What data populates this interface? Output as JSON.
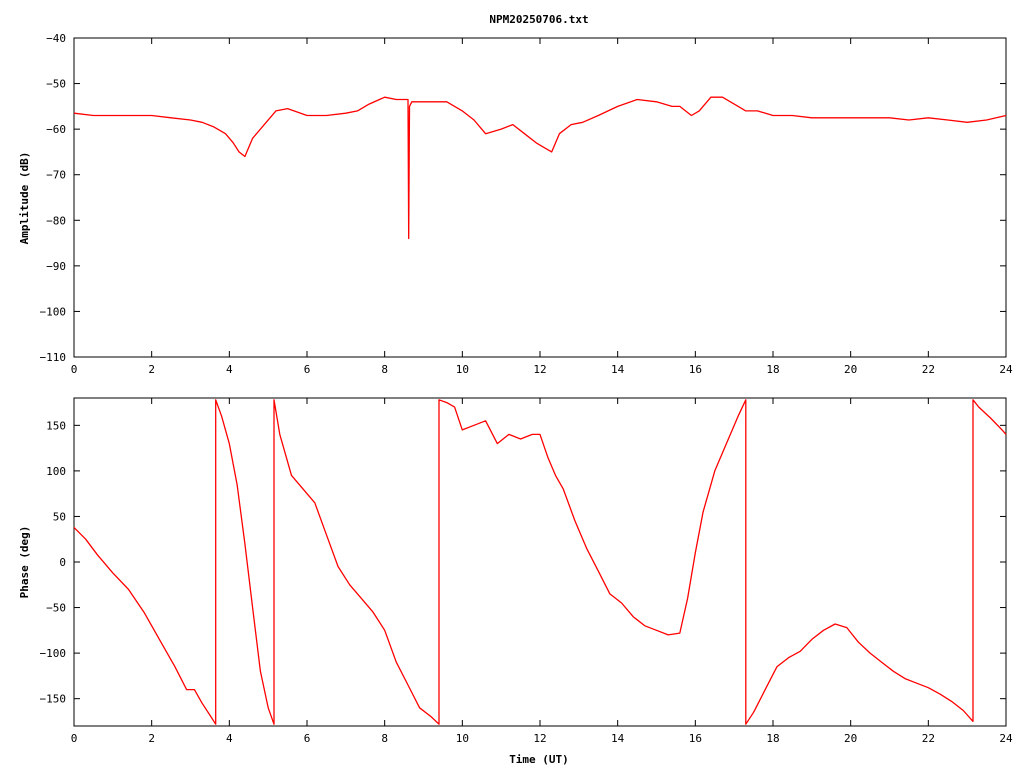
{
  "title": "NPM20250706.txt",
  "colors": {
    "trace": "#ff0000",
    "axis": "#000000",
    "grid": "#000000"
  },
  "chart_data": [
    {
      "type": "line",
      "panel": "amplitude",
      "xlabel": "",
      "ylabel": "Amplitude (dB)",
      "xlim": [
        0,
        24
      ],
      "ylim": [
        -110,
        -40
      ],
      "xticks": [
        0,
        2,
        4,
        6,
        8,
        10,
        12,
        14,
        16,
        18,
        20,
        22,
        24
      ],
      "yticks": [
        -40,
        -50,
        -60,
        -70,
        -80,
        -90,
        -100,
        -110
      ],
      "xtick_labels": [
        "0",
        "2",
        "4",
        "6",
        "8",
        "10",
        "12",
        "14",
        "16",
        "18",
        "20",
        "22",
        "24"
      ],
      "ytick_labels": [
        "−40",
        "−50",
        "−60",
        "−70",
        "−80",
        "−90",
        "−100",
        "−110"
      ],
      "series": [
        {
          "x": [
            0,
            0.5,
            1,
            1.5,
            2,
            2.5,
            3,
            3.3,
            3.6,
            3.9,
            4.1,
            4.25,
            4.4,
            4.6,
            4.9,
            5.2,
            5.5,
            6.0,
            6.5,
            7.0,
            7.3,
            7.6,
            8.0,
            8.3,
            8.6,
            8.62,
            8.64,
            8.7,
            9.0,
            9.3,
            9.6,
            10.0,
            10.3,
            10.6,
            11.0,
            11.3,
            11.6,
            11.9,
            12.1,
            12.3,
            12.5,
            12.8,
            13.1,
            13.5,
            14.0,
            14.5,
            15.0,
            15.4,
            15.6,
            15.9,
            16.1,
            16.4,
            16.7,
            17.0,
            17.3,
            17.6,
            18.0,
            18.5,
            19.0,
            19.5,
            20.0,
            20.5,
            21.0,
            21.5,
            22.0,
            22.5,
            23.0,
            23.5,
            24.0
          ],
          "y": [
            -56.5,
            -57,
            -57,
            -57,
            -57,
            -57.5,
            -58,
            -58.5,
            -59.5,
            -61,
            -63,
            -65,
            -66,
            -62,
            -59,
            -56,
            -55.5,
            -57,
            -57,
            -56.5,
            -56,
            -54.5,
            -53,
            -53.5,
            -53.5,
            -84,
            -55,
            -54,
            -54,
            -54,
            -54,
            -56,
            -58,
            -61,
            -60,
            -59,
            -61,
            -63,
            -64,
            -65,
            -61,
            -59,
            -58.5,
            -57,
            -55,
            -53.5,
            -54,
            -55,
            -55,
            -57,
            -56,
            -53,
            -53,
            -54.5,
            -56,
            -56,
            -57,
            -57,
            -57.5,
            -57.5,
            -57.5,
            -57.5,
            -57.5,
            -58,
            -57.5,
            -58,
            -58.5,
            -58,
            -57
          ]
        }
      ]
    },
    {
      "type": "line",
      "panel": "phase",
      "xlabel": "Time (UT)",
      "ylabel": "Phase (deg)",
      "xlim": [
        0,
        24
      ],
      "ylim": [
        -180,
        180
      ],
      "xticks": [
        0,
        2,
        4,
        6,
        8,
        10,
        12,
        14,
        16,
        18,
        20,
        22,
        24
      ],
      "yticks": [
        150,
        100,
        50,
        0,
        -50,
        -100,
        -150
      ],
      "xtick_labels": [
        "0",
        "2",
        "4",
        "6",
        "8",
        "10",
        "12",
        "14",
        "16",
        "18",
        "20",
        "22",
        "24"
      ],
      "ytick_labels": [
        "150",
        "100",
        "50",
        "0",
        "−50",
        "−100",
        "−150"
      ],
      "series": [
        {
          "x": [
            0,
            0.3,
            0.6,
            1.0,
            1.4,
            1.8,
            2.2,
            2.6,
            2.9,
            3.1,
            3.3,
            3.5,
            3.65,
            3.65,
            3.8,
            4.0,
            4.2,
            4.4,
            4.6,
            4.8,
            5.0,
            5.15,
            5.15,
            5.3,
            5.6,
            5.9,
            6.2,
            6.5,
            6.8,
            7.1,
            7.4,
            7.7,
            8.0,
            8.3,
            8.6,
            8.9,
            9.2,
            9.4,
            9.4,
            9.6,
            9.8,
            10.0,
            10.3,
            10.6,
            10.9,
            11.2,
            11.5,
            11.8,
            12.0,
            12.2,
            12.4,
            12.6,
            12.9,
            13.2,
            13.5,
            13.8,
            14.1,
            14.4,
            14.7,
            15.0,
            15.3,
            15.6,
            15.8,
            16.0,
            16.2,
            16.5,
            16.8,
            17.1,
            17.3,
            17.3,
            17.5,
            17.8,
            18.1,
            18.4,
            18.7,
            19.0,
            19.3,
            19.6,
            19.9,
            20.2,
            20.5,
            20.8,
            21.1,
            21.4,
            21.7,
            22.0,
            22.3,
            22.6,
            22.9,
            23.15,
            23.15,
            23.3,
            23.6,
            23.9,
            24.0
          ],
          "y": [
            38,
            25,
            8,
            -12,
            -30,
            -55,
            -85,
            -115,
            -140,
            -140,
            -155,
            -168,
            -178,
            178,
            160,
            130,
            85,
            20,
            -50,
            -120,
            -160,
            -178,
            178,
            140,
            95,
            80,
            65,
            30,
            -5,
            -25,
            -40,
            -55,
            -75,
            -110,
            -135,
            -160,
            -170,
            -178,
            178,
            175,
            170,
            145,
            150,
            155,
            130,
            140,
            135,
            140,
            140,
            115,
            95,
            80,
            45,
            15,
            -10,
            -35,
            -45,
            -60,
            -70,
            -75,
            -80,
            -78,
            -40,
            10,
            55,
            100,
            130,
            160,
            178,
            -178,
            -165,
            -140,
            -115,
            -105,
            -98,
            -85,
            -75,
            -68,
            -72,
            -88,
            -100,
            -110,
            -120,
            -128,
            -133,
            -138,
            -145,
            -153,
            -163,
            -175,
            178,
            170,
            158,
            145,
            140
          ]
        }
      ]
    }
  ]
}
